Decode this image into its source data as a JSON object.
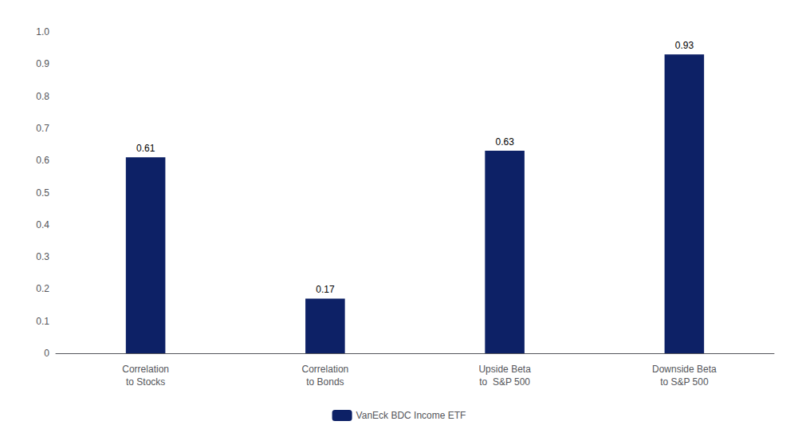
{
  "chart_data": {
    "type": "bar",
    "categories": [
      "Correlation\nto Stocks",
      "Correlation\nto Bonds",
      "Upside Beta\nto  S&P 500",
      "Downside Beta\nto S&P 500"
    ],
    "series": [
      {
        "name": "VanEck BDC Income ETF",
        "color": "#0d2166",
        "values": [
          0.61,
          0.17,
          0.63,
          0.93
        ]
      }
    ],
    "ylim": [
      0,
      1.0
    ],
    "yticks": [
      0,
      0.1,
      0.2,
      0.3,
      0.4,
      0.5,
      0.6,
      0.7,
      0.8,
      0.9,
      {
        "value": 1.0,
        "label": "1.0"
      }
    ],
    "grid": false,
    "legend": "bottom",
    "data_labels": true
  }
}
